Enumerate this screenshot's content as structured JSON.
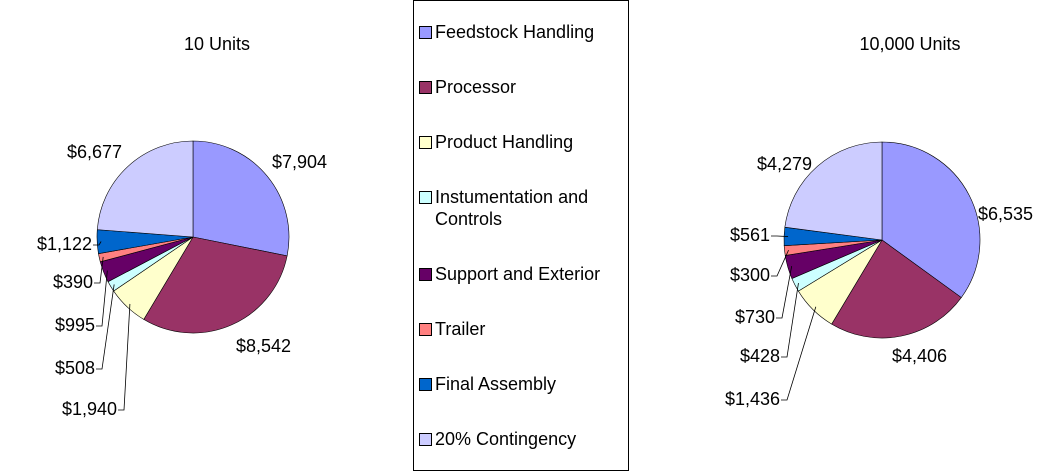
{
  "chart_data": {
    "type": "pie",
    "categories": [
      "Feedstock Handling",
      "Processor",
      "Product Handling",
      "Instumentation and Controls",
      "Support and Exterior",
      "Trailer",
      "Final Assembly",
      "20% Contingency"
    ],
    "colors": [
      "#9999ff",
      "#993366",
      "#ffffcc",
      "#ccffff",
      "#660066",
      "#ff8080",
      "#0066cc",
      "#ccccff"
    ],
    "series": [
      {
        "name": "10 Units",
        "values": [
          7904,
          8542,
          1940,
          508,
          995,
          390,
          1122,
          6677
        ],
        "value_labels": [
          "$7,904",
          "$8,542",
          "$1,940",
          "$508",
          "$995",
          "$390",
          "$1,122",
          "$6,677"
        ]
      },
      {
        "name": "10,000 Units",
        "values": [
          6535,
          4406,
          1436,
          428,
          730,
          300,
          561,
          4279
        ],
        "value_labels": [
          "$6,535",
          "$4,406",
          "$1,436",
          "$428",
          "$730",
          "$300",
          "$561",
          "$4,279"
        ]
      }
    ]
  }
}
